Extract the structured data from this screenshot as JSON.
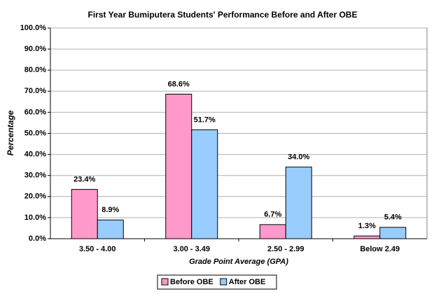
{
  "chart_data": {
    "type": "bar",
    "title": "First Year Bumiputera Students' Performance Before and After OBE",
    "x_label": "Grade Point Average (GPA)",
    "y_label": "Percentage",
    "categories": [
      "3.50 - 4.00",
      "3.00 - 3.49",
      "2.50 - 2.99",
      "Below 2.49"
    ],
    "series": [
      {
        "name": "Before OBE",
        "color": "#ff99cc",
        "values": [
          23.4,
          68.6,
          6.7,
          1.3
        ],
        "value_labels": [
          "23.4%",
          "68.6%",
          "6.7%",
          "1.3%"
        ]
      },
      {
        "name": "After OBE",
        "color": "#99ccff",
        "values": [
          8.9,
          51.7,
          34.0,
          5.4
        ],
        "value_labels": [
          "8.9%",
          "51.7%",
          "34.0%",
          "5.4%"
        ]
      }
    ],
    "ylim": [
      0,
      100
    ],
    "yticks": [
      {
        "value": 0,
        "label": "0.0%"
      },
      {
        "value": 10,
        "label": "10.0%"
      },
      {
        "value": 20,
        "label": "20.0%"
      },
      {
        "value": 30,
        "label": "30.0%"
      },
      {
        "value": 40,
        "label": "40.0%"
      },
      {
        "value": 50,
        "label": "50.0%"
      },
      {
        "value": 60,
        "label": "60.0%"
      },
      {
        "value": 70,
        "label": "70.0%"
      },
      {
        "value": 80,
        "label": "80.0%"
      },
      {
        "value": 90,
        "label": "90.0%"
      },
      {
        "value": 100,
        "label": "100.0%"
      }
    ],
    "grid": true,
    "legend": "bottom"
  }
}
